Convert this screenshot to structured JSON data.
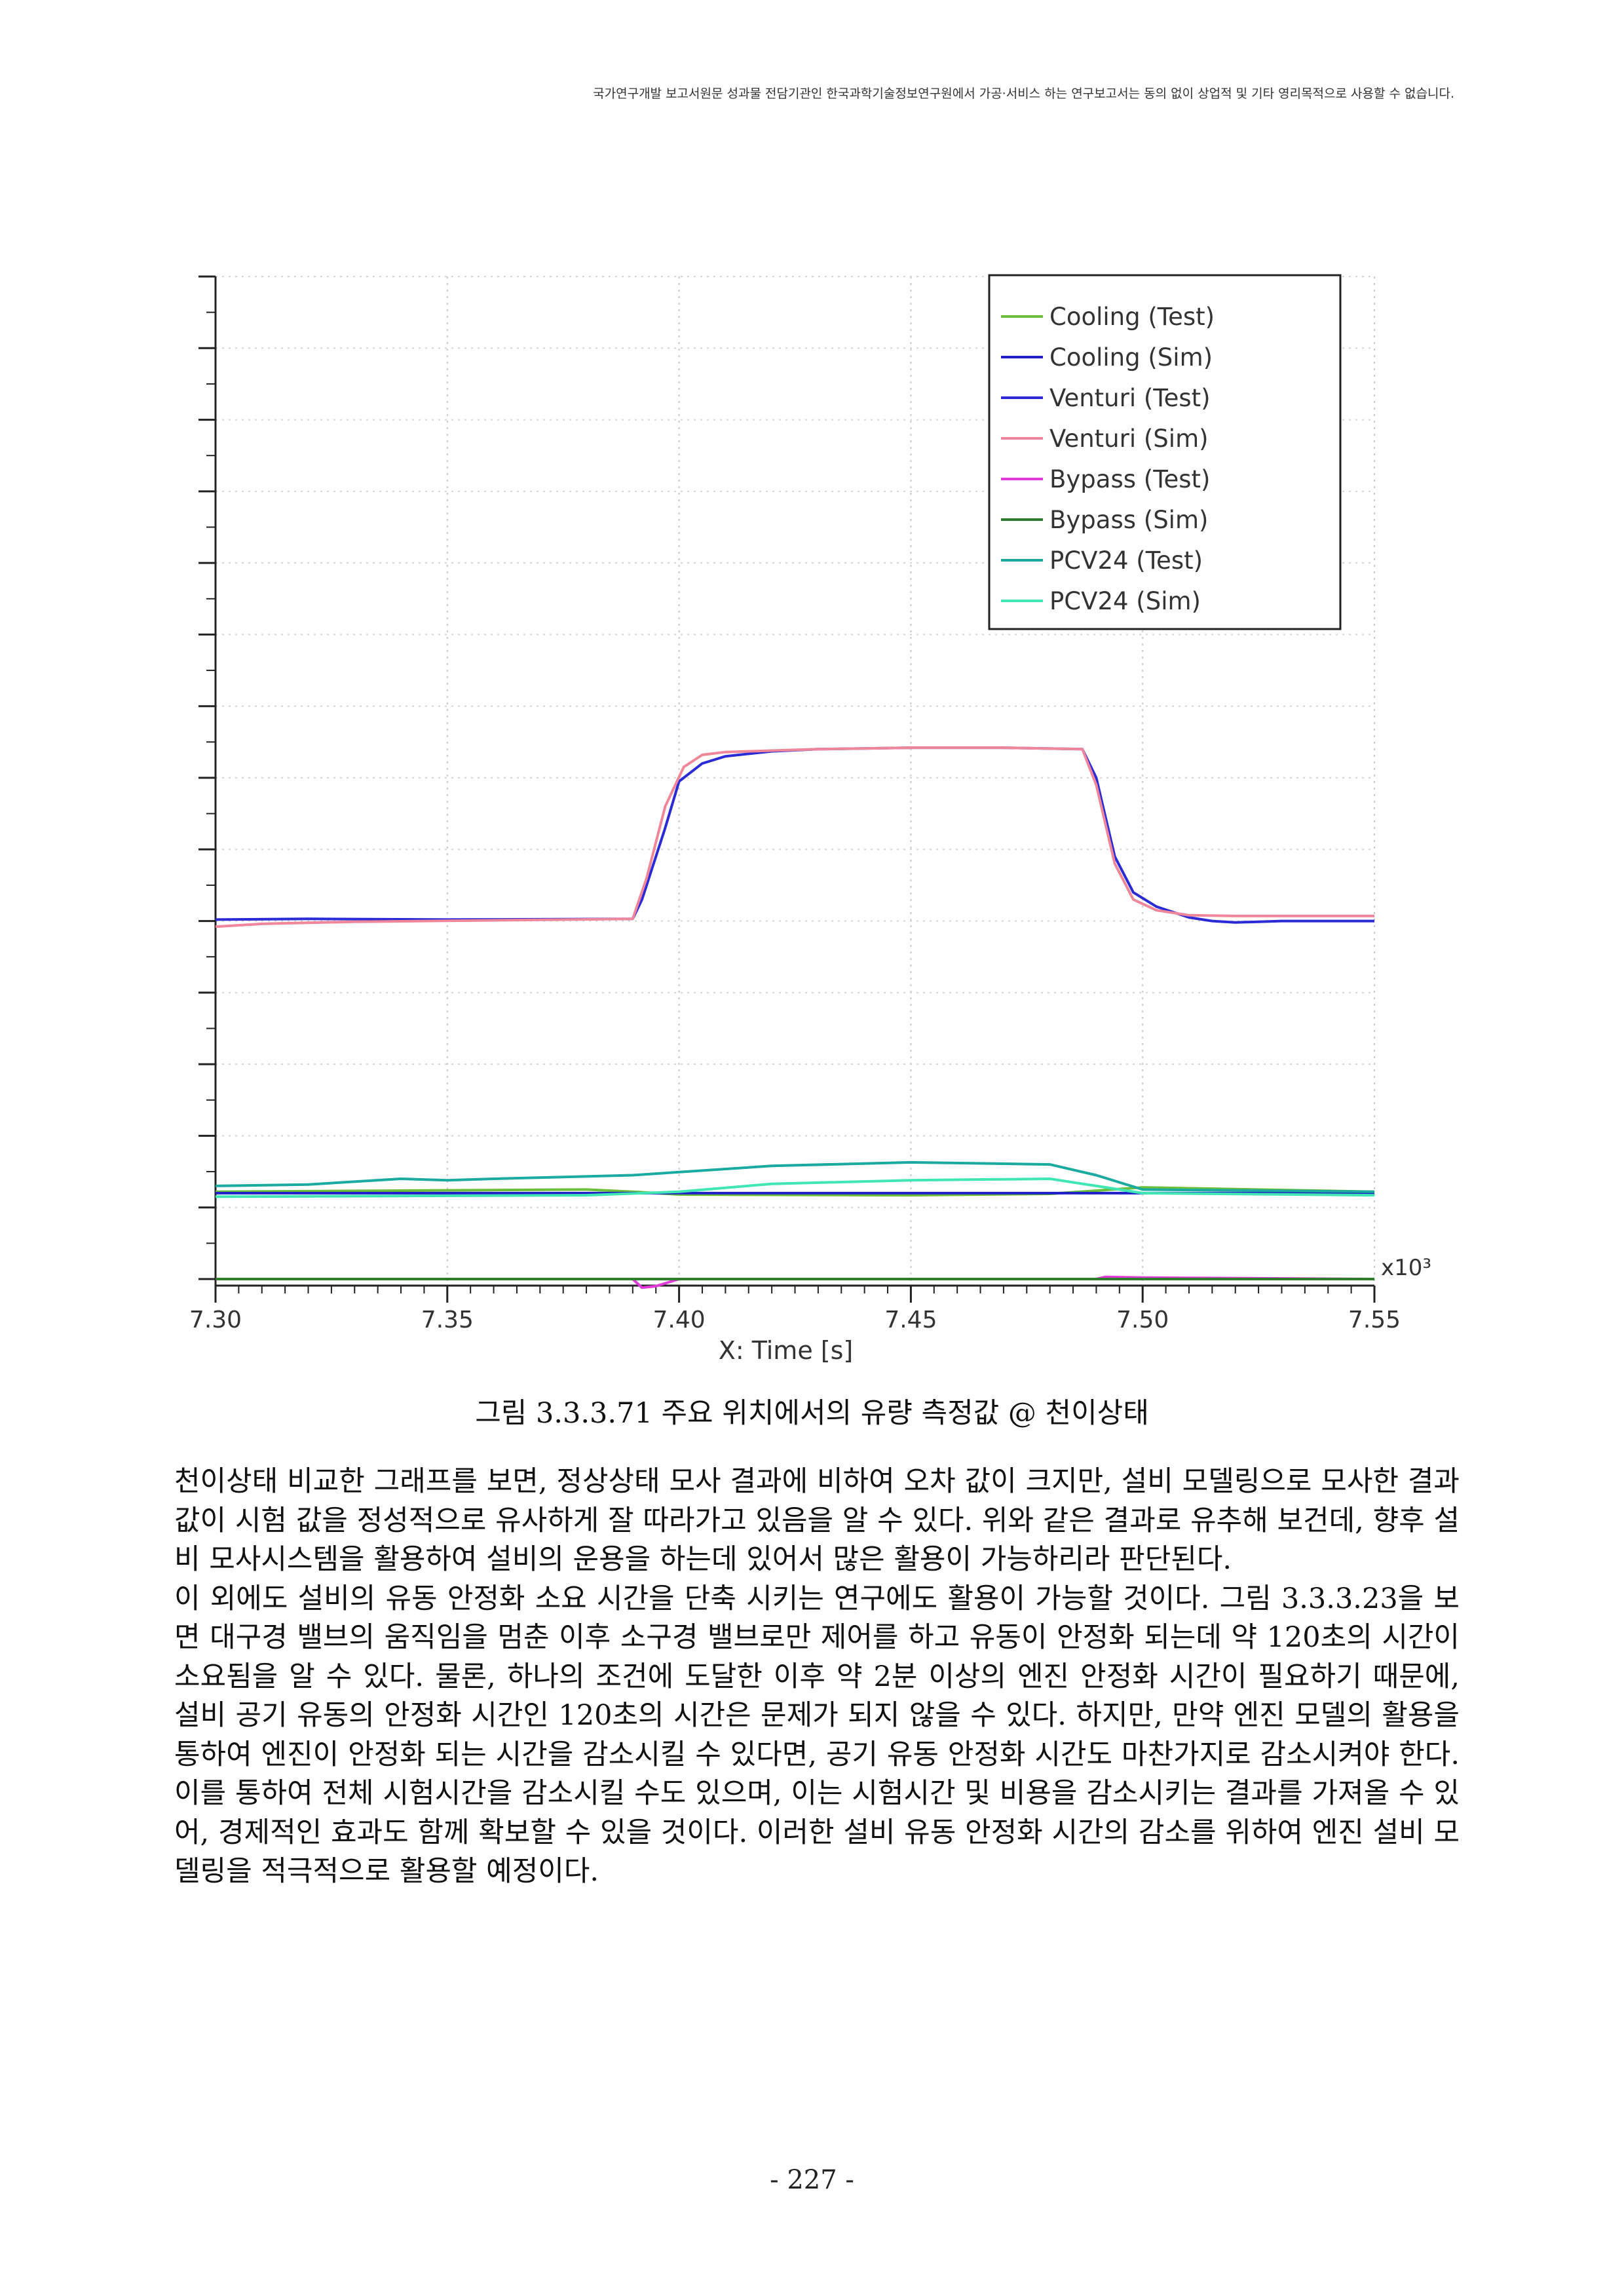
{
  "header": {
    "notice": "국가연구개발 보고서원문 성과물 전담기관인 한국과학기술정보연구원에서 가공·서비스 하는 연구보고서는 동의 없이 상업적 및 기타 영리목적으로 사용할 수 없습니다."
  },
  "figure": {
    "caption": "그림 3.3.3.71 주요 위치에서의 유량 측정값 @ 천이상태"
  },
  "chart_data": {
    "type": "line",
    "xlabel": "X: Time [s]",
    "x_multiplier_label": "x10³",
    "xlim": [
      7.3,
      7.55
    ],
    "x_ticks": [
      "7.30",
      "7.35",
      "7.40",
      "7.45",
      "7.50",
      "7.55"
    ],
    "ylim": [
      0,
      14
    ],
    "y_tick_labels_shown": false,
    "grid": true,
    "legend_position": "top-right",
    "series": [
      {
        "name": "Cooling (Test)",
        "color": "#6cbf3a",
        "points": [
          [
            7.3,
            1.22
          ],
          [
            7.38,
            1.25
          ],
          [
            7.39,
            1.22
          ],
          [
            7.4,
            1.18
          ],
          [
            7.45,
            1.17
          ],
          [
            7.48,
            1.19
          ],
          [
            7.5,
            1.28
          ],
          [
            7.55,
            1.22
          ]
        ]
      },
      {
        "name": "Cooling (Sim)",
        "color": "#1f1fc8",
        "points": [
          [
            7.3,
            1.2
          ],
          [
            7.55,
            1.2
          ]
        ]
      },
      {
        "name": "Venturi (Test)",
        "color": "#2b2bd6",
        "points": [
          [
            7.3,
            5.02
          ],
          [
            7.32,
            5.03
          ],
          [
            7.35,
            5.02
          ],
          [
            7.39,
            5.03
          ],
          [
            7.392,
            5.3
          ],
          [
            7.397,
            6.3
          ],
          [
            7.4,
            6.95
          ],
          [
            7.405,
            7.2
          ],
          [
            7.41,
            7.3
          ],
          [
            7.42,
            7.37
          ],
          [
            7.43,
            7.4
          ],
          [
            7.45,
            7.42
          ],
          [
            7.47,
            7.42
          ],
          [
            7.487,
            7.4
          ],
          [
            7.49,
            7.0
          ],
          [
            7.494,
            5.9
          ],
          [
            7.498,
            5.4
          ],
          [
            7.503,
            5.2
          ],
          [
            7.51,
            5.05
          ],
          [
            7.515,
            5.0
          ],
          [
            7.52,
            4.98
          ],
          [
            7.53,
            5.0
          ],
          [
            7.55,
            5.0
          ]
        ]
      },
      {
        "name": "Venturi (Sim)",
        "color": "#f0869a",
        "points": [
          [
            7.3,
            4.92
          ],
          [
            7.31,
            4.96
          ],
          [
            7.33,
            4.99
          ],
          [
            7.36,
            5.01
          ],
          [
            7.39,
            5.03
          ],
          [
            7.393,
            5.6
          ],
          [
            7.397,
            6.6
          ],
          [
            7.401,
            7.15
          ],
          [
            7.405,
            7.32
          ],
          [
            7.41,
            7.36
          ],
          [
            7.43,
            7.4
          ],
          [
            7.45,
            7.42
          ],
          [
            7.47,
            7.42
          ],
          [
            7.487,
            7.4
          ],
          [
            7.49,
            6.9
          ],
          [
            7.494,
            5.8
          ],
          [
            7.498,
            5.3
          ],
          [
            7.503,
            5.15
          ],
          [
            7.51,
            5.08
          ],
          [
            7.52,
            5.07
          ],
          [
            7.55,
            5.07
          ]
        ]
      },
      {
        "name": "Bypass (Test)",
        "color": "#e23ad8",
        "points": [
          [
            7.3,
            0.0
          ],
          [
            7.39,
            0.0
          ],
          [
            7.392,
            -0.12
          ],
          [
            7.395,
            -0.1
          ],
          [
            7.4,
            0.0
          ],
          [
            7.49,
            0.0
          ],
          [
            7.492,
            0.03
          ],
          [
            7.5,
            0.02
          ],
          [
            7.55,
            0.0
          ]
        ]
      },
      {
        "name": "Bypass (Sim)",
        "color": "#2e7d2e",
        "points": [
          [
            7.3,
            0.0
          ],
          [
            7.55,
            0.0
          ]
        ]
      },
      {
        "name": "PCV24 (Test)",
        "color": "#1aaaa0",
        "points": [
          [
            7.3,
            1.3
          ],
          [
            7.32,
            1.32
          ],
          [
            7.34,
            1.4
          ],
          [
            7.35,
            1.38
          ],
          [
            7.36,
            1.4
          ],
          [
            7.39,
            1.45
          ],
          [
            7.42,
            1.58
          ],
          [
            7.45,
            1.63
          ],
          [
            7.48,
            1.6
          ],
          [
            7.49,
            1.45
          ],
          [
            7.5,
            1.25
          ],
          [
            7.55,
            1.22
          ]
        ]
      },
      {
        "name": "PCV24 (Sim)",
        "color": "#40e6b4",
        "points": [
          [
            7.3,
            1.15
          ],
          [
            7.38,
            1.17
          ],
          [
            7.4,
            1.22
          ],
          [
            7.42,
            1.33
          ],
          [
            7.45,
            1.38
          ],
          [
            7.48,
            1.4
          ],
          [
            7.49,
            1.3
          ],
          [
            7.5,
            1.2
          ],
          [
            7.55,
            1.17
          ]
        ]
      }
    ]
  },
  "body": {
    "paragraphs": [
      " 천이상태 비교한 그래프를 보면, 정상상태 모사 결과에 비하여 오차 값이 크지만, 설비 모델링으로 모사한 결과 값이 시험 값을 정성적으로 유사하게 잘 따라가고 있음을 알 수 있다. 위와 같은 결과로 유추해 보건데, 향후 설비 모사시스템을 활용하여 설비의 운용을 하는데 있어서 많은 활용이 가능하리라 판단된다.",
      " 이 외에도 설비의 유동 안정화 소요 시간을 단축 시키는 연구에도 활용이 가능할 것이다. 그림 3.3.3.23을 보면 대구경 밸브의 움직임을 멈춘 이후 소구경 밸브로만 제어를 하고 유동이 안정화 되는데 약 120초의 시간이 소요됨을 알 수 있다. 물론, 하나의 조건에 도달한 이후 약 2분 이상의 엔진 안정화 시간이 필요하기 때문에, 설비 공기 유동의 안정화 시간인 120초의 시간은 문제가 되지 않을 수 있다. 하지만, 만약 엔진 모델의 활용을 통하여 엔진이 안정화 되는 시간을 감소시킬 수 있다면, 공기 유동 안정화 시간도 마찬가지로 감소시켜야 한다. 이를 통하여 전체 시험시간을 감소시킬 수도 있으며, 이는 시험시간 및 비용을 감소시키는 결과를 가져올 수 있어, 경제적인 효과도 함께 확보할 수 있을 것이다. 이러한 설비 유동 안정화 시간의 감소를 위하여 엔진 설비 모델링을 적극적으로 활용할 예정이다."
    ]
  },
  "footer": {
    "page_number": "- 227 -"
  }
}
